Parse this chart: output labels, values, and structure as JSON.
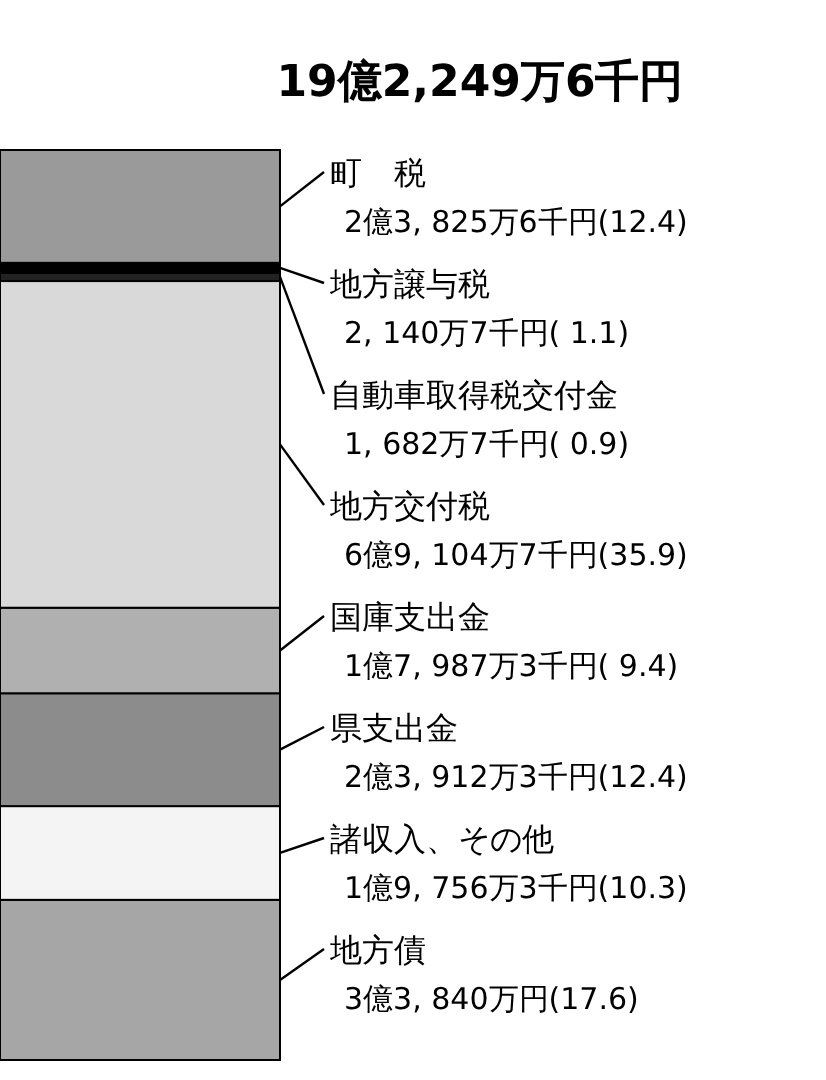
{
  "chart_data": {
    "type": "bar",
    "title": "19億2,249万6千円",
    "stacked": true,
    "categories": [
      null
    ],
    "ylim": [
      0,
      100
    ],
    "series": [
      {
        "name": "地方債",
        "color": "#a6a6a6",
        "values": [
          17.6
        ],
        "value_labels": [
          "3億3, 840万円(17.6)"
        ]
      },
      {
        "name": "諸収入、その他",
        "color": "#f4f4f4",
        "values": [
          10.3
        ],
        "value_labels": [
          "1億9, 756万3千円(10.3)"
        ]
      },
      {
        "name": "県支出金",
        "color": "#8c8c8c",
        "values": [
          12.4
        ],
        "value_labels": [
          "2億3, 912万3千円(12.4)"
        ]
      },
      {
        "name": "国庫支出金",
        "color": "#b0b0b0",
        "values": [
          9.4
        ],
        "value_labels": [
          "1億7, 987万3千円( 9.4)"
        ]
      },
      {
        "name": "地方交付税",
        "color": "#d9d9d9",
        "values": [
          35.9
        ],
        "value_labels": [
          "6億9, 104万7千円(35.9)"
        ]
      },
      {
        "name": "自動車取得税交付金",
        "color": "#222222",
        "values": [
          0.9
        ],
        "value_labels": [
          "1, 682万7千円( 0.9)"
        ]
      },
      {
        "name": "地方譲与税",
        "color": "#000000",
        "values": [
          1.1
        ],
        "value_labels": [
          "2, 140万7千円( 1.1)"
        ]
      },
      {
        "name": "町　税",
        "color": "#9a9a9a",
        "values": [
          12.4
        ],
        "value_labels": [
          "2億3, 825万6千円(12.4)"
        ]
      }
    ]
  }
}
